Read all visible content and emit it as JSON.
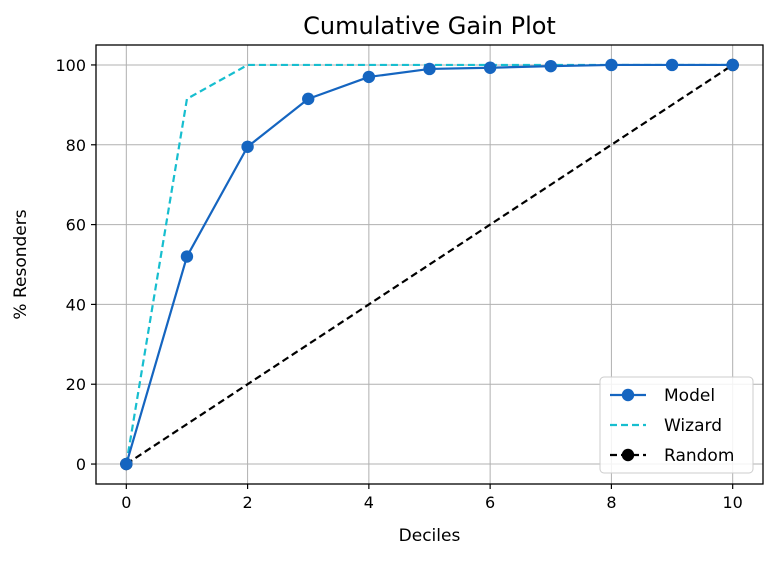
{
  "chart_data": {
    "type": "line",
    "title": "Cumulative Gain Plot",
    "xlabel": "Deciles",
    "ylabel": "% Resonders",
    "xlim": [
      -0.5,
      10.5
    ],
    "ylim": [
      -5,
      105
    ],
    "x_ticks": [
      "0",
      "2",
      "4",
      "6",
      "8",
      "10"
    ],
    "y_ticks": [
      "0",
      "20",
      "40",
      "60",
      "80",
      "100"
    ],
    "grid": true,
    "legend_position": "bottom-right",
    "series": [
      {
        "name": "Model",
        "color": "#1565c0",
        "line_style": "solid",
        "marker": "circle",
        "x": [
          0,
          1,
          2,
          3,
          4,
          5,
          6,
          7,
          8,
          9,
          10
        ],
        "y": [
          0,
          52,
          79.5,
          91.5,
          97,
          99,
          99.3,
          99.7,
          100,
          100,
          100
        ]
      },
      {
        "name": "Wizard",
        "color": "#17becf",
        "line_style": "dashed",
        "marker": "none",
        "x": [
          0,
          1,
          2,
          10
        ],
        "y": [
          0,
          91.5,
          100,
          100
        ]
      },
      {
        "name": "Random",
        "color": "#000000",
        "line_style": "dashed",
        "marker": "circle",
        "x": [
          0,
          10
        ],
        "y": [
          0,
          100
        ]
      }
    ]
  }
}
